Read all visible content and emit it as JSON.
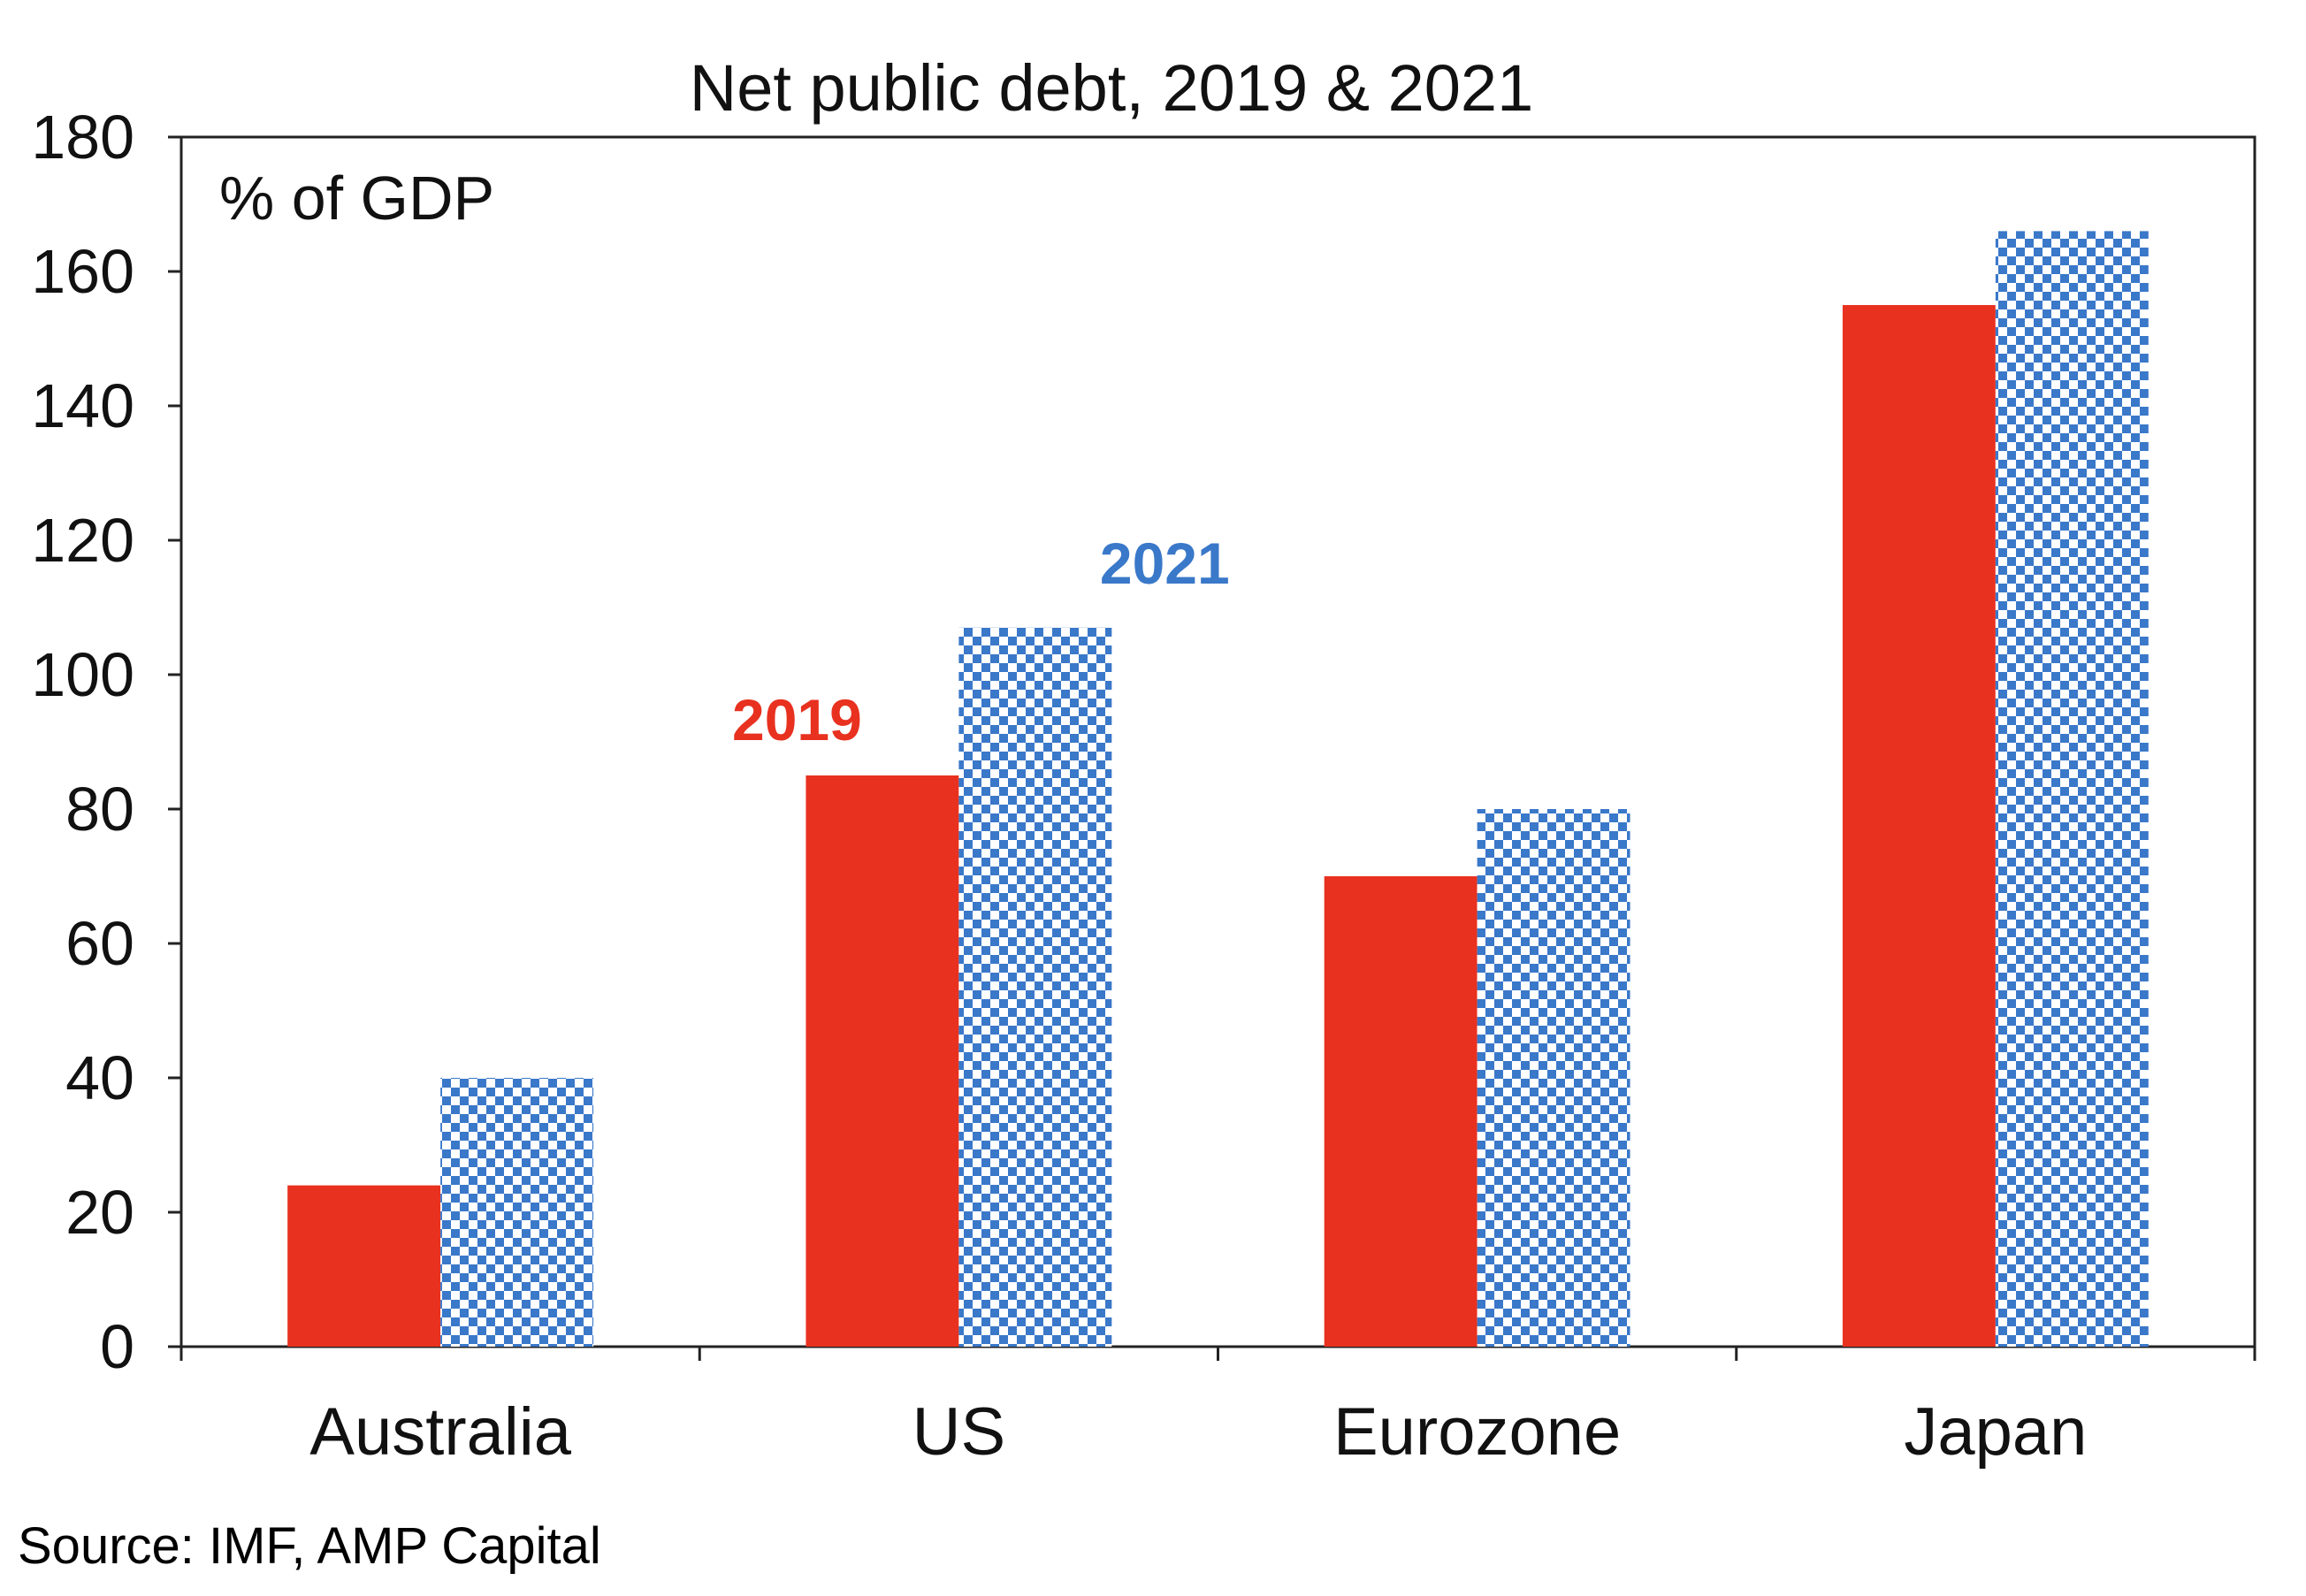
{
  "chart_data": {
    "type": "bar",
    "title": "Net public debt, 2019 & 2021",
    "unit_label": "% of GDP",
    "categories": [
      "Australia",
      "US",
      "Eurozone",
      "Japan"
    ],
    "series": [
      {
        "name": "2019",
        "values": [
          24,
          85,
          70,
          155
        ],
        "color": "#e8311f",
        "fill": "solid"
      },
      {
        "name": "2021",
        "values": [
          40,
          107,
          80,
          166
        ],
        "color": "#3a78c9",
        "fill": "checkered"
      }
    ],
    "xlabel": "",
    "ylabel": "",
    "ylim": [
      0,
      180
    ],
    "yticks": [
      0,
      20,
      40,
      60,
      80,
      100,
      120,
      140,
      160,
      180
    ],
    "grid": false,
    "legend": "inline labels above US bars"
  },
  "source": "Source: IMF, AMP Capital"
}
